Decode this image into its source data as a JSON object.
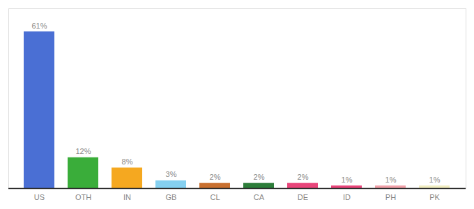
{
  "chart_data": {
    "type": "bar",
    "categories": [
      "US",
      "OTH",
      "IN",
      "GB",
      "CL",
      "CA",
      "DE",
      "ID",
      "PH",
      "PK"
    ],
    "values": [
      61,
      12,
      8,
      3,
      2,
      2,
      2,
      1,
      1,
      1
    ],
    "colors": [
      "#4a6fd4",
      "#3aad3a",
      "#f5a820",
      "#85d0f0",
      "#c87030",
      "#2d7d3a",
      "#e8457a",
      "#e8457a",
      "#f0a0a8",
      "#f0ecc0"
    ],
    "value_labels": [
      "61%",
      "12%",
      "8%",
      "3%",
      "2%",
      "2%",
      "2%",
      "1%",
      "1%",
      "1%"
    ],
    "data_labels": true,
    "ylim": [
      0,
      70
    ],
    "tick_labels": "x",
    "grid": false
  }
}
